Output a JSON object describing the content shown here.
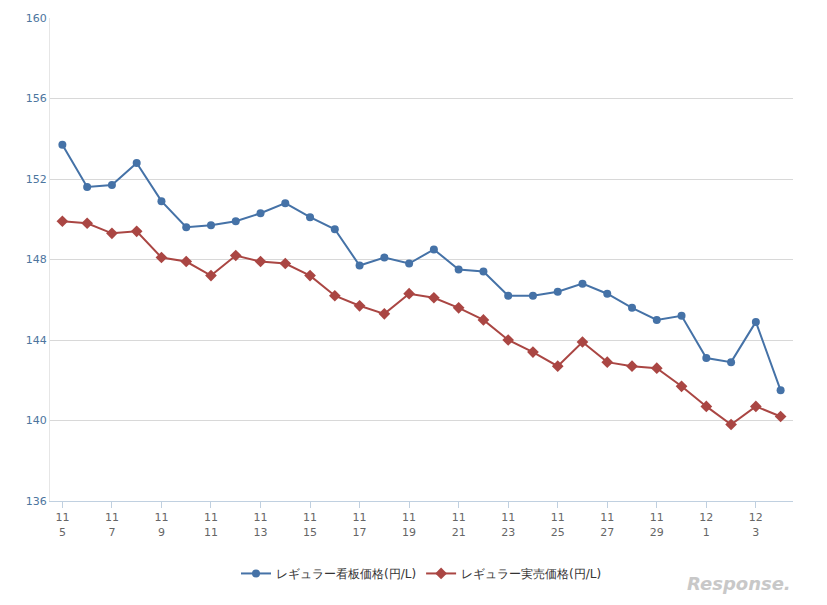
{
  "chart_data": {
    "type": "line",
    "categories": [
      "11\n5",
      null,
      "11\n7",
      null,
      "11\n9",
      null,
      "11\n11",
      null,
      "11\n13",
      null,
      "11\n15",
      null,
      "11\n17",
      null,
      "11\n19",
      null,
      "11\n21",
      null,
      "11\n23",
      null,
      "11\n25",
      null,
      "11\n27",
      null,
      "11\n29",
      null,
      "12\n1",
      null,
      "12\n3",
      null
    ],
    "series": [
      {
        "name": "レギュラー看板価格(円/L)",
        "color": "#4572A7",
        "marker": "circle",
        "values": [
          153.7,
          151.6,
          151.7,
          152.8,
          150.9,
          149.6,
          149.7,
          149.9,
          150.3,
          150.8,
          150.1,
          149.5,
          147.7,
          148.1,
          147.8,
          148.5,
          147.5,
          147.4,
          146.2,
          146.2,
          146.4,
          146.8,
          146.3,
          145.6,
          145.0,
          145.2,
          143.1,
          142.9,
          144.9,
          141.5
        ]
      },
      {
        "name": "レギュラー実売価格(円/L)",
        "color": "#AA4643",
        "marker": "diamond",
        "values": [
          149.9,
          149.8,
          149.3,
          149.4,
          148.1,
          147.9,
          147.2,
          148.2,
          147.9,
          147.8,
          147.2,
          146.2,
          145.7,
          145.3,
          146.3,
          146.1,
          145.6,
          145.0,
          144.0,
          143.4,
          142.7,
          143.9,
          142.9,
          142.7,
          142.6,
          141.7,
          140.7,
          139.8,
          140.7,
          140.2
        ]
      }
    ],
    "ylim": [
      136,
      160
    ],
    "yticks": [
      136,
      140,
      144,
      148,
      152,
      156,
      160
    ],
    "grid": true,
    "legend": "bottom",
    "annotations": [
      {
        "text": "Response."
      }
    ]
  }
}
